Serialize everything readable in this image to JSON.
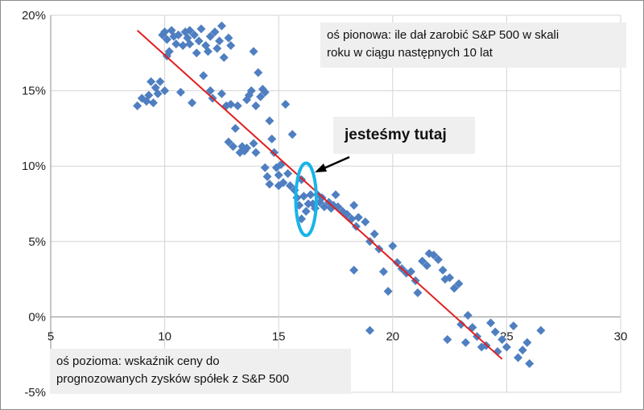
{
  "chart_data": {
    "type": "scatter",
    "title": "",
    "xlabel": "",
    "ylabel": "",
    "xlim": [
      5,
      30
    ],
    "ylim": [
      -5,
      20
    ],
    "x_ticks": [
      "5",
      "10",
      "15",
      "20",
      "25",
      "30"
    ],
    "y_ticks": [
      "-5%",
      "0%",
      "5%",
      "10%",
      "15%",
      "20%"
    ],
    "grid": "vertical and horizontal",
    "colors": {
      "points": "#4f7fc1",
      "trend": "#e02020",
      "highlight": "#18b4e8"
    },
    "series": [
      {
        "marker": "diamond",
        "points": [
          [
            8.8,
            14.0
          ],
          [
            9.0,
            14.5
          ],
          [
            9.2,
            14.3
          ],
          [
            9.3,
            14.7
          ],
          [
            9.4,
            15.6
          ],
          [
            9.5,
            14.2
          ],
          [
            9.6,
            15.2
          ],
          [
            9.7,
            14.8
          ],
          [
            9.8,
            15.6
          ],
          [
            9.9,
            18.7
          ],
          [
            10.0,
            18.9
          ],
          [
            10.0,
            15.0
          ],
          [
            10.1,
            18.4
          ],
          [
            10.1,
            17.3
          ],
          [
            10.2,
            17.6
          ],
          [
            10.3,
            19.0
          ],
          [
            10.4,
            18.6
          ],
          [
            10.5,
            18.1
          ],
          [
            10.6,
            18.7
          ],
          [
            10.7,
            14.9
          ],
          [
            10.8,
            18.0
          ],
          [
            10.9,
            18.9
          ],
          [
            11.0,
            18.5
          ],
          [
            11.1,
            19.0
          ],
          [
            11.1,
            18.1
          ],
          [
            11.2,
            14.2
          ],
          [
            11.3,
            18.7
          ],
          [
            11.4,
            17.5
          ],
          [
            11.5,
            18.3
          ],
          [
            11.6,
            19.1
          ],
          [
            11.7,
            16.0
          ],
          [
            11.8,
            18.0
          ],
          [
            11.9,
            17.6
          ],
          [
            12.0,
            18.6
          ],
          [
            12.0,
            15.0
          ],
          [
            12.1,
            14.5
          ],
          [
            12.2,
            18.9
          ],
          [
            12.3,
            17.8
          ],
          [
            12.4,
            18.3
          ],
          [
            12.5,
            19.3
          ],
          [
            12.6,
            17.2
          ],
          [
            12.5,
            14.8
          ],
          [
            12.7,
            14.0
          ],
          [
            12.8,
            18.5
          ],
          [
            12.9,
            18.0
          ],
          [
            12.9,
            14.1
          ],
          [
            13.0,
            11.3
          ],
          [
            12.8,
            11.6
          ],
          [
            13.1,
            12.5
          ],
          [
            13.2,
            14.0
          ],
          [
            13.3,
            10.9
          ],
          [
            13.4,
            11.3
          ],
          [
            13.5,
            11.0
          ],
          [
            13.6,
            14.4
          ],
          [
            13.7,
            14.7
          ],
          [
            13.8,
            15.0
          ],
          [
            13.6,
            11.2
          ],
          [
            13.9,
            17.6
          ],
          [
            13.9,
            11.5
          ],
          [
            14.0,
            10.9
          ],
          [
            14.0,
            14.0
          ],
          [
            14.1,
            16.2
          ],
          [
            14.2,
            14.6
          ],
          [
            14.3,
            15.1
          ],
          [
            14.4,
            14.9
          ],
          [
            14.4,
            9.9
          ],
          [
            14.5,
            9.3
          ],
          [
            14.6,
            8.8
          ],
          [
            14.6,
            13.0
          ],
          [
            14.7,
            11.8
          ],
          [
            14.8,
            10.9
          ],
          [
            14.9,
            9.9
          ],
          [
            15.0,
            9.4
          ],
          [
            15.0,
            8.7
          ],
          [
            15.1,
            10.1
          ],
          [
            15.2,
            8.9
          ],
          [
            15.3,
            14.1
          ],
          [
            15.4,
            9.5
          ],
          [
            15.5,
            8.7
          ],
          [
            15.6,
            12.1
          ],
          [
            15.7,
            8.4
          ],
          [
            15.8,
            7.9
          ],
          [
            15.9,
            7.4
          ],
          [
            16.0,
            6.5
          ],
          [
            16.0,
            9.1
          ],
          [
            16.1,
            8.0
          ],
          [
            16.2,
            7.0
          ],
          [
            16.3,
            7.5
          ],
          [
            16.4,
            8.1
          ],
          [
            16.5,
            7.5
          ],
          [
            16.6,
            7.2
          ],
          [
            16.7,
            8.1
          ],
          [
            16.8,
            7.6
          ],
          [
            16.9,
            7.9
          ],
          [
            17.0,
            7.3
          ],
          [
            17.2,
            7.6
          ],
          [
            17.3,
            7.2
          ],
          [
            17.4,
            7.4
          ],
          [
            17.5,
            8.1
          ],
          [
            17.6,
            7.3
          ],
          [
            17.8,
            7.0
          ],
          [
            18.0,
            6.8
          ],
          [
            18.2,
            6.5
          ],
          [
            18.3,
            7.4
          ],
          [
            18.4,
            6.0
          ],
          [
            18.5,
            6.6
          ],
          [
            18.3,
            3.1
          ],
          [
            18.8,
            6.3
          ],
          [
            19.0,
            -0.9
          ],
          [
            19.0,
            5.0
          ],
          [
            19.2,
            5.5
          ],
          [
            19.4,
            4.5
          ],
          [
            19.6,
            3.0
          ],
          [
            19.8,
            1.7
          ],
          [
            20.0,
            4.7
          ],
          [
            20.2,
            3.6
          ],
          [
            20.4,
            3.2
          ],
          [
            20.6,
            2.9
          ],
          [
            20.8,
            3.0
          ],
          [
            21.0,
            2.4
          ],
          [
            21.1,
            1.6
          ],
          [
            21.3,
            3.7
          ],
          [
            21.5,
            3.4
          ],
          [
            21.6,
            4.2
          ],
          [
            21.8,
            4.1
          ],
          [
            22.0,
            3.8
          ],
          [
            22.2,
            3.1
          ],
          [
            22.3,
            2.5
          ],
          [
            22.5,
            2.6
          ],
          [
            22.7,
            1.9
          ],
          [
            22.4,
            -1.5
          ],
          [
            22.9,
            2.2
          ],
          [
            23.0,
            -0.5
          ],
          [
            23.2,
            -1.7
          ],
          [
            23.3,
            0.1
          ],
          [
            23.5,
            -0.7
          ],
          [
            23.7,
            -1.3
          ],
          [
            23.9,
            -2.0
          ],
          [
            24.1,
            -1.9
          ],
          [
            24.3,
            -0.4
          ],
          [
            24.5,
            -1.0
          ],
          [
            24.6,
            -2.3
          ],
          [
            24.8,
            -1.5
          ],
          [
            25.0,
            -2.0
          ],
          [
            25.3,
            -0.6
          ],
          [
            25.5,
            -2.7
          ],
          [
            25.7,
            -2.2
          ],
          [
            25.9,
            -1.7
          ],
          [
            26.0,
            -3.1
          ],
          [
            26.5,
            -0.9
          ]
        ]
      }
    ],
    "trendline": {
      "from": [
        8.8,
        19.0
      ],
      "to": [
        24.8,
        -2.8
      ]
    },
    "highlight": {
      "x": 16.2,
      "y": 7.8,
      "rx": 0.45,
      "ry": 2.4
    },
    "annotations": {
      "y_axis_note": [
        "oś pionowa: ile dał zarobić S&P 500 w skali",
        "roku w ciągu następnych 10 lat"
      ],
      "x_axis_note": [
        "oś pozioma: wskaźnik ceny do",
        "prognozowanych  zysków spółek z S&P 500"
      ],
      "here": "jesteśmy tutaj"
    }
  }
}
